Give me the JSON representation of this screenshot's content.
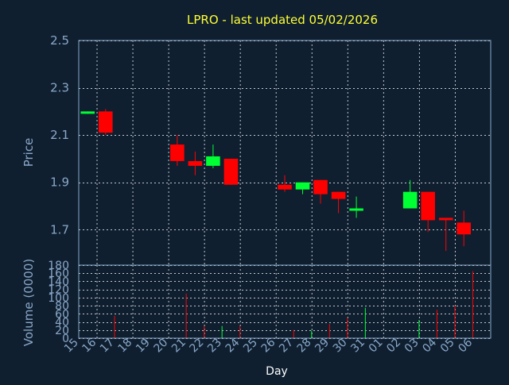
{
  "chart_data": {
    "type": "candlestick",
    "title": "LPRO - last updated 05/02/2026",
    "xlabel": "Day",
    "price_panel": {
      "ylabel": "Price",
      "ylim": [
        1.55,
        2.5
      ],
      "yticks": [
        "2.5",
        "2.3",
        "2.1",
        "1.9",
        "1.7"
      ],
      "ytick_values": [
        2.5,
        2.3,
        2.1,
        1.9,
        1.7
      ],
      "grid": true
    },
    "volume_panel": {
      "ylabel": "Volume (0000)",
      "ylim": [
        0,
        180
      ],
      "yticks": [
        "180",
        "160",
        "140",
        "120",
        "100",
        "80",
        "60",
        "40",
        "20",
        "0"
      ],
      "ytick_values": [
        180,
        160,
        140,
        120,
        100,
        80,
        60,
        40,
        20,
        0
      ],
      "grid": true
    },
    "x_tick_labels": [
      "15",
      "16",
      "17",
      "18",
      "19",
      "20",
      "21",
      "22",
      "23",
      "24",
      "25",
      "26",
      "27",
      "28",
      "29",
      "30",
      "31",
      "01",
      "02",
      "03",
      "04",
      "05",
      "06"
    ],
    "candles": [
      {
        "slot": 0,
        "open": 2.19,
        "close": 2.2,
        "high": 2.2,
        "low": 2.19,
        "volume": 0,
        "direction": "up"
      },
      {
        "slot": 1,
        "open": 2.2,
        "close": 2.11,
        "high": 2.21,
        "low": 2.1,
        "volume": 55,
        "direction": "down"
      },
      {
        "slot": 5,
        "open": 2.06,
        "close": 1.99,
        "high": 2.1,
        "low": 1.97,
        "volume": 110,
        "direction": "down"
      },
      {
        "slot": 6,
        "open": 1.99,
        "close": 1.97,
        "high": 2.03,
        "low": 1.93,
        "volume": 30,
        "direction": "down"
      },
      {
        "slot": 7,
        "open": 1.97,
        "close": 2.01,
        "high": 2.06,
        "low": 1.96,
        "volume": 30,
        "direction": "up"
      },
      {
        "slot": 8,
        "open": 2.0,
        "close": 1.89,
        "high": 2.0,
        "low": 1.89,
        "volume": 30,
        "direction": "down"
      },
      {
        "slot": 11,
        "open": 1.89,
        "close": 1.87,
        "high": 1.93,
        "low": 1.86,
        "volume": 20,
        "direction": "down"
      },
      {
        "slot": 12,
        "open": 1.87,
        "close": 1.9,
        "high": 1.9,
        "low": 1.85,
        "volume": 18,
        "direction": "up"
      },
      {
        "slot": 13,
        "open": 1.91,
        "close": 1.85,
        "high": 1.91,
        "low": 1.81,
        "volume": 35,
        "direction": "down"
      },
      {
        "slot": 14,
        "open": 1.86,
        "close": 1.83,
        "high": 1.86,
        "low": 1.77,
        "volume": 50,
        "direction": "down"
      },
      {
        "slot": 15,
        "open": 1.78,
        "close": 1.79,
        "high": 1.84,
        "low": 1.75,
        "volume": 75,
        "direction": "up"
      },
      {
        "slot": 18,
        "open": 1.79,
        "close": 1.86,
        "high": 1.91,
        "low": 1.79,
        "volume": 45,
        "direction": "up"
      },
      {
        "slot": 19,
        "open": 1.86,
        "close": 1.74,
        "high": 1.86,
        "low": 1.69,
        "volume": 70,
        "direction": "down"
      },
      {
        "slot": 20,
        "open": 1.75,
        "close": 1.74,
        "high": 1.75,
        "low": 1.61,
        "volume": 80,
        "direction": "down"
      },
      {
        "slot": 21,
        "open": 1.73,
        "close": 1.68,
        "high": 1.78,
        "low": 1.63,
        "volume": 165,
        "direction": "down"
      }
    ],
    "colors": {
      "up": "#00ff33",
      "down": "#ff0000",
      "background": "#0f1f30",
      "plot_border": "#8aa8c8",
      "grid": "#ffffff",
      "title": "#ffff33",
      "axis_text": "#8aa8c8",
      "xlabel": "#ffffff"
    }
  }
}
